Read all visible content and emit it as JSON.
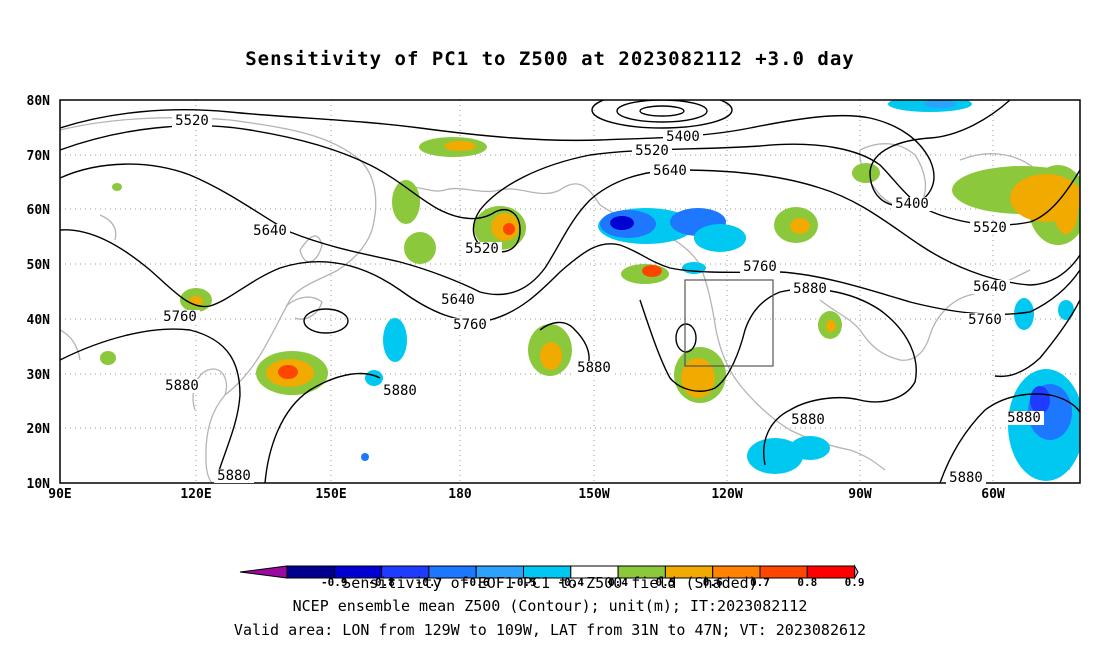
{
  "title": "Sensitivity of PC1 to Z500 at 2023082112 +3.0 day",
  "axes": {
    "lon_labels": [
      "90E",
      "120E",
      "150E",
      "180",
      "150W",
      "120W",
      "90W",
      "60W"
    ],
    "lat_labels": [
      "80N",
      "70N",
      "60N",
      "50N",
      "40N",
      "30N",
      "20N",
      "10N"
    ]
  },
  "contour_labels": [
    "5520",
    "5400",
    "5520",
    "5640",
    "5400",
    "5520",
    "5640",
    "5520",
    "5760",
    "5880",
    "5640",
    "5760",
    "5640",
    "5760",
    "5760",
    "5880",
    "5880",
    "5880",
    "5880",
    "5880",
    "5880",
    "5880"
  ],
  "colorbar": {
    "ticks": [
      "-0.9",
      "-0.8",
      "-0.7",
      "-0.6",
      "-0.5",
      "-0.4",
      "0.4",
      "0.5",
      "0.6",
      "0.7",
      "0.8",
      "0.9"
    ],
    "colors": [
      "#9a0aa0",
      "#00008c",
      "#0000d2",
      "#1e3cff",
      "#1e78ff",
      "#2ca2ff",
      "#00c8f0",
      "#ffffff",
      "#8cc83c",
      "#f0aa00",
      "#ff8200",
      "#ff4600",
      "#ff0000",
      "#f0a0c8"
    ],
    "label": "Sensitivity of EOF1 PC1 to Z500 field (Shaded)"
  },
  "footer": {
    "line1": "NCEP ensemble mean Z500 (Contour); unit(m); IT:2023082112",
    "line2": "Valid area: LON from 129W to 109W, LAT from 31N to 47N; VT: 2023082612"
  }
}
